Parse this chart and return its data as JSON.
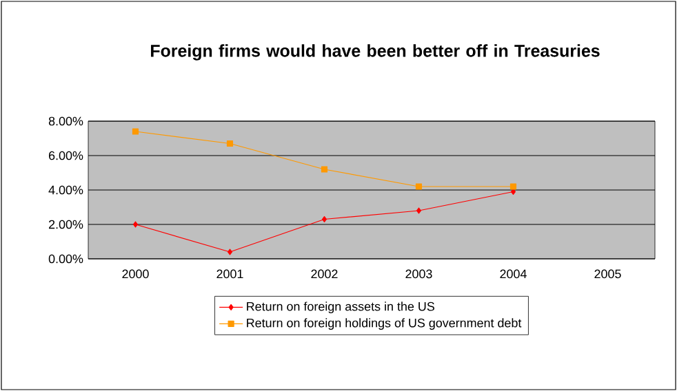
{
  "chart_data": {
    "type": "line",
    "title": "Foreign firms would have been better off in Treasuries",
    "categories": [
      "2000",
      "2001",
      "2002",
      "2003",
      "2004",
      "2005"
    ],
    "series": [
      {
        "name": "Return on foreign assets in the US",
        "color": "#ff0000",
        "marker": "diamond",
        "values": [
          2.0,
          0.4,
          2.3,
          2.8,
          3.9,
          null
        ]
      },
      {
        "name": "Return on foreign holdings of US government debt",
        "color": "#ff9900",
        "marker": "square",
        "values": [
          7.4,
          6.7,
          5.2,
          4.2,
          4.2,
          null
        ]
      }
    ],
    "ylim": [
      0,
      8
    ],
    "yticks": [
      {
        "value": 0,
        "label": "0.00%"
      },
      {
        "value": 2,
        "label": "2.00%"
      },
      {
        "value": 4,
        "label": "4.00%"
      },
      {
        "value": 6,
        "label": "6.00%"
      },
      {
        "value": 8,
        "label": "8.00%"
      }
    ],
    "grid": "y",
    "legend": "bottom",
    "line_style": "solid"
  }
}
